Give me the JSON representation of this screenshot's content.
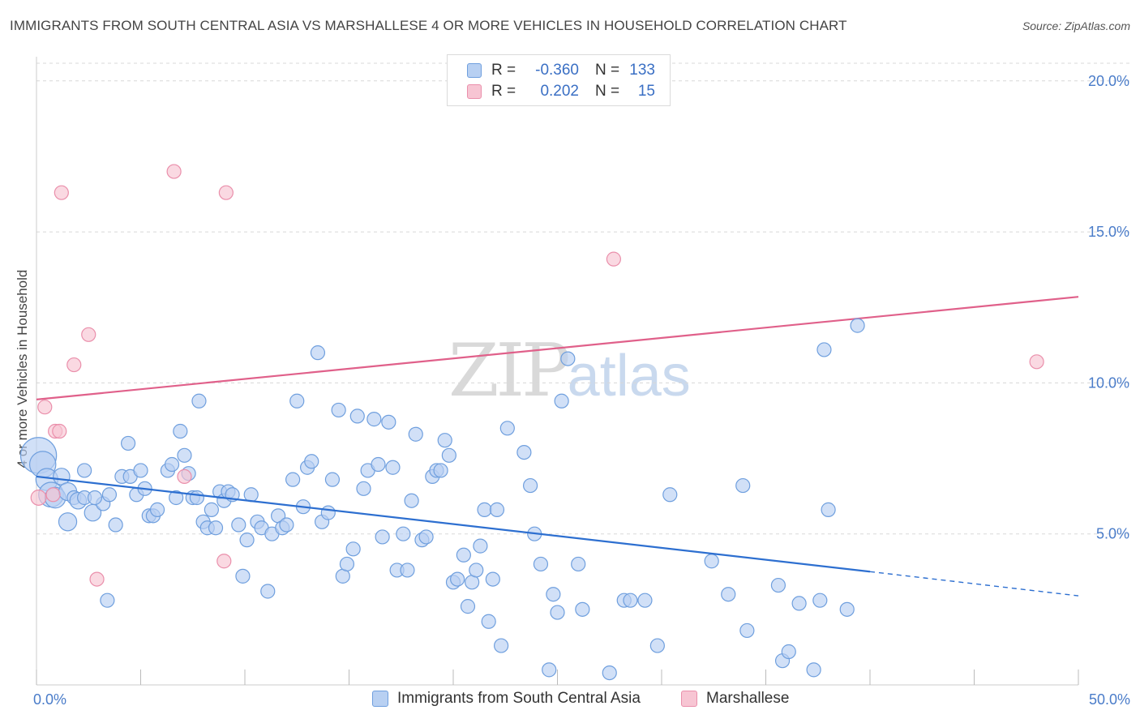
{
  "title": "IMMIGRANTS FROM SOUTH CENTRAL ASIA VS MARSHALLESE 4 OR MORE VEHICLES IN HOUSEHOLD CORRELATION CHART",
  "source": "Source: ZipAtlas.com",
  "watermark": {
    "zip": "ZIP",
    "atlas": "atlas"
  },
  "legend": {
    "series1": {
      "r_label": "R =",
      "r_value": "-0.360",
      "n_label": "N =",
      "n_value": "133"
    },
    "series2": {
      "r_label": "R =",
      "r_value": "0.202",
      "n_label": "N =",
      "n_value": "15"
    }
  },
  "colors": {
    "blue_fill": "#b8d0f2",
    "blue_stroke": "#6f9fde",
    "blue_line": "#2d6fd0",
    "pink_fill": "#f7c5d3",
    "pink_stroke": "#ea8fab",
    "pink_line": "#e0608a",
    "tick": "#4a7cc9",
    "grid": "#d8d8d8"
  },
  "chart_data": {
    "type": "scatter",
    "title": "IMMIGRANTS FROM SOUTH CENTRAL ASIA VS MARSHALLESE 4 OR MORE VEHICLES IN HOUSEHOLD CORRELATION CHART",
    "xlabel": "",
    "ylabel": "4 or more Vehicles in Household",
    "xlim": [
      0,
      50
    ],
    "ylim": [
      0,
      20.8
    ],
    "x_tick_labels": [
      "0.0%",
      "50.0%"
    ],
    "y_ticks": [
      5,
      10,
      15,
      20
    ],
    "y_tick_labels": [
      "5.0%",
      "10.0%",
      "15.0%",
      "20.0%"
    ],
    "grid": true,
    "legend_position": "top-center",
    "series": [
      {
        "name": "Immigrants from South Central Asia",
        "color": "blue",
        "trend": {
          "x0": 0,
          "y0": 6.9,
          "x1": 40,
          "y1": 3.75,
          "dash_to_x": 50,
          "dash_to_y": 2.95
        },
        "points": [
          [
            0.1,
            7.6,
            2.6
          ],
          [
            0.3,
            7.3,
            1.9
          ],
          [
            0.5,
            6.8,
            1.6
          ],
          [
            0.7,
            6.3,
            1.8
          ],
          [
            0.9,
            6.2,
            1.5
          ],
          [
            1.2,
            6.9,
            1.2
          ],
          [
            1.5,
            6.4,
            1.3
          ],
          [
            1.8,
            6.2,
            1.0
          ],
          [
            1.5,
            5.4,
            1.3
          ],
          [
            2.0,
            6.1,
            1.2
          ],
          [
            2.3,
            6.2,
            1.0
          ],
          [
            2.7,
            5.7,
            1.2
          ],
          [
            3.2,
            6.0,
            1.0
          ],
          [
            2.3,
            7.1,
            1.0
          ],
          [
            2.8,
            6.2,
            1.0
          ],
          [
            3.5,
            6.3,
            1.0
          ],
          [
            3.8,
            5.3,
            1.0
          ],
          [
            3.4,
            2.8,
            1.0
          ],
          [
            4.1,
            6.9,
            1.0
          ],
          [
            4.5,
            6.9,
            1.0
          ],
          [
            4.4,
            8.0,
            1.0
          ],
          [
            4.8,
            6.3,
            1.0
          ],
          [
            5.0,
            7.1,
            1.0
          ],
          [
            5.2,
            6.5,
            1.0
          ],
          [
            5.4,
            5.6,
            1.0
          ],
          [
            5.6,
            5.6,
            1.0
          ],
          [
            5.8,
            5.8,
            1.0
          ],
          [
            6.3,
            7.1,
            1.0
          ],
          [
            6.5,
            7.3,
            1.0
          ],
          [
            6.7,
            6.2,
            1.0
          ],
          [
            6.9,
            8.4,
            1.0
          ],
          [
            7.1,
            7.6,
            1.0
          ],
          [
            7.3,
            7.0,
            1.0
          ],
          [
            7.5,
            6.2,
            1.0
          ],
          [
            7.7,
            6.2,
            1.0
          ],
          [
            7.8,
            9.4,
            1.0
          ],
          [
            8.0,
            5.4,
            1.0
          ],
          [
            8.2,
            5.2,
            1.0
          ],
          [
            8.4,
            5.8,
            1.0
          ],
          [
            8.6,
            5.2,
            1.0
          ],
          [
            8.8,
            6.4,
            1.0
          ],
          [
            9.0,
            6.1,
            1.0
          ],
          [
            9.2,
            6.4,
            1.0
          ],
          [
            9.4,
            6.3,
            1.0
          ],
          [
            9.7,
            5.3,
            1.0
          ],
          [
            9.9,
            3.6,
            1.0
          ],
          [
            10.1,
            4.8,
            1.0
          ],
          [
            10.3,
            6.3,
            1.0
          ],
          [
            10.6,
            5.4,
            1.0
          ],
          [
            10.8,
            5.2,
            1.0
          ],
          [
            11.1,
            3.1,
            1.0
          ],
          [
            11.3,
            5.0,
            1.0
          ],
          [
            11.6,
            5.6,
            1.0
          ],
          [
            11.8,
            5.2,
            1.0
          ],
          [
            12.0,
            5.3,
            1.0
          ],
          [
            12.3,
            6.8,
            1.0
          ],
          [
            12.5,
            9.4,
            1.0
          ],
          [
            12.8,
            5.9,
            1.0
          ],
          [
            13.0,
            7.2,
            1.0
          ],
          [
            13.2,
            7.4,
            1.0
          ],
          [
            13.5,
            11.0,
            1.0
          ],
          [
            13.7,
            5.4,
            1.0
          ],
          [
            14.0,
            5.7,
            1.0
          ],
          [
            14.2,
            6.8,
            1.0
          ],
          [
            14.5,
            9.1,
            1.0
          ],
          [
            14.7,
            3.6,
            1.0
          ],
          [
            14.9,
            4.0,
            1.0
          ],
          [
            15.2,
            4.5,
            1.0
          ],
          [
            15.4,
            8.9,
            1.0
          ],
          [
            15.7,
            6.5,
            1.0
          ],
          [
            15.9,
            7.1,
            1.0
          ],
          [
            16.2,
            8.8,
            1.0
          ],
          [
            16.4,
            7.3,
            1.0
          ],
          [
            16.6,
            4.9,
            1.0
          ],
          [
            16.9,
            8.7,
            1.0
          ],
          [
            17.1,
            7.2,
            1.0
          ],
          [
            17.3,
            3.8,
            1.0
          ],
          [
            17.6,
            5.0,
            1.0
          ],
          [
            17.8,
            3.8,
            1.0
          ],
          [
            18.0,
            6.1,
            1.0
          ],
          [
            18.2,
            8.3,
            1.0
          ],
          [
            18.5,
            4.8,
            1.0
          ],
          [
            18.7,
            4.9,
            1.0
          ],
          [
            19.0,
            6.9,
            1.0
          ],
          [
            19.2,
            7.1,
            1.0
          ],
          [
            19.4,
            7.1,
            1.0
          ],
          [
            19.6,
            8.1,
            1.0
          ],
          [
            19.8,
            7.6,
            1.0
          ],
          [
            20.0,
            3.4,
            1.0
          ],
          [
            20.2,
            3.5,
            1.0
          ],
          [
            20.5,
            4.3,
            1.0
          ],
          [
            20.7,
            2.6,
            1.0
          ],
          [
            20.9,
            3.4,
            1.0
          ],
          [
            21.1,
            3.8,
            1.0
          ],
          [
            21.3,
            4.6,
            1.0
          ],
          [
            21.5,
            5.8,
            1.0
          ],
          [
            21.7,
            2.1,
            1.0
          ],
          [
            21.9,
            3.5,
            1.0
          ],
          [
            22.1,
            5.8,
            1.0
          ],
          [
            22.3,
            1.3,
            1.0
          ],
          [
            22.6,
            8.5,
            1.0
          ],
          [
            23.4,
            7.7,
            1.0
          ],
          [
            23.7,
            6.6,
            1.0
          ],
          [
            23.9,
            5.0,
            1.0
          ],
          [
            24.2,
            4.0,
            1.0
          ],
          [
            24.6,
            0.5,
            1.0
          ],
          [
            24.8,
            3.0,
            1.0
          ],
          [
            25.0,
            2.4,
            1.0
          ],
          [
            25.2,
            9.4,
            1.0
          ],
          [
            25.5,
            10.8,
            1.0
          ],
          [
            26.0,
            4.0,
            1.0
          ],
          [
            26.2,
            2.5,
            1.0
          ],
          [
            27.5,
            0.4,
            1.0
          ],
          [
            28.2,
            2.8,
            1.0
          ],
          [
            28.5,
            2.8,
            1.0
          ],
          [
            29.2,
            2.8,
            1.0
          ],
          [
            29.8,
            1.3,
            1.0
          ],
          [
            30.4,
            6.3,
            1.0
          ],
          [
            32.4,
            4.1,
            1.0
          ],
          [
            33.2,
            3.0,
            1.0
          ],
          [
            33.9,
            6.6,
            1.0
          ],
          [
            34.1,
            1.8,
            1.0
          ],
          [
            35.6,
            3.3,
            1.0
          ],
          [
            35.8,
            0.8,
            1.0
          ],
          [
            36.1,
            1.1,
            1.0
          ],
          [
            36.6,
            2.7,
            1.0
          ],
          [
            37.3,
            0.5,
            1.0
          ],
          [
            37.6,
            2.8,
            1.0
          ],
          [
            37.8,
            11.1,
            1.0
          ],
          [
            38.0,
            5.8,
            1.0
          ],
          [
            38.9,
            2.5,
            1.0
          ],
          [
            39.4,
            11.9,
            1.0
          ]
        ]
      },
      {
        "name": "Marshallese",
        "color": "pink",
        "trend": {
          "x0": 0,
          "y0": 9.45,
          "x1": 50,
          "y1": 12.85
        },
        "points": [
          [
            0.1,
            6.2,
            1.1
          ],
          [
            0.4,
            9.2,
            1.0
          ],
          [
            0.8,
            6.3,
            1.0
          ],
          [
            0.9,
            8.4,
            1.0
          ],
          [
            1.1,
            8.4,
            1.0
          ],
          [
            1.2,
            16.3,
            1.0
          ],
          [
            1.8,
            10.6,
            1.0
          ],
          [
            2.5,
            11.6,
            1.0
          ],
          [
            2.9,
            3.5,
            1.0
          ],
          [
            6.6,
            17.0,
            1.0
          ],
          [
            7.1,
            6.9,
            1.0
          ],
          [
            9.0,
            4.1,
            1.0
          ],
          [
            9.1,
            16.3,
            1.0
          ],
          [
            27.7,
            14.1,
            1.0
          ],
          [
            48.0,
            10.7,
            1.0
          ]
        ]
      }
    ]
  }
}
